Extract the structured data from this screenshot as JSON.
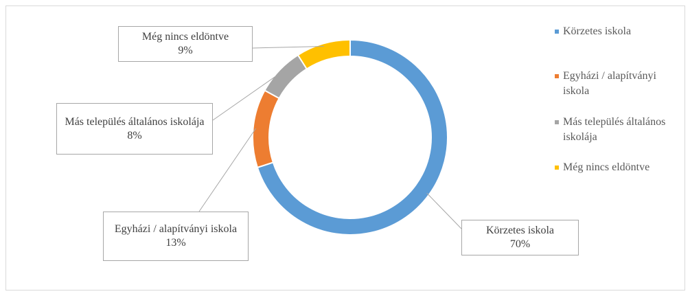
{
  "chart_data": {
    "type": "donut",
    "categories": [
      "Körzetes iskola",
      "Egyházi / alapítványi iskola",
      "Más település általános iskolája",
      "Még nincs eldöntve"
    ],
    "values": [
      70,
      13,
      8,
      9
    ],
    "value_labels": [
      "70%",
      "13%",
      "8%",
      "9%"
    ],
    "colors": [
      "#5b9bd5",
      "#ed7d31",
      "#a5a5a5",
      "#ffc000"
    ],
    "legend": "right"
  }
}
